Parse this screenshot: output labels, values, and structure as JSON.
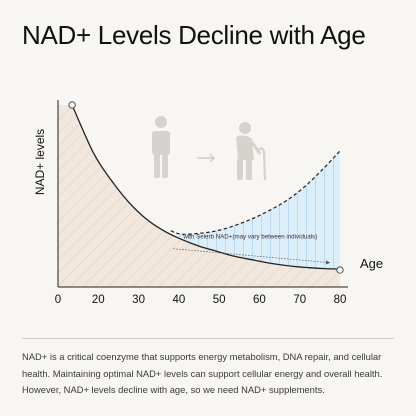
{
  "title": "NAD+ Levels Decline with Age",
  "description": "NAD+ is a critical coenzyme that supports energy metabolism, DNA repair, and cellular health. Maintaining optimal NAD+ levels can support cellular energy and overall health. However, NAD+ levels decline with age, so we need NAD+ supplements.",
  "colors": {
    "decline_fill": "#f1e7dc",
    "decline_hatch": "#d9cabb",
    "supplement_fill": "#dceefb",
    "supplement_lines": "#a9cfee",
    "line": "#222222",
    "icon": "#d6d3ce"
  },
  "icons": [
    "young-person-icon",
    "arrow-right-icon",
    "elderly-person-with-cane-icon"
  ],
  "chart_data": {
    "type": "line",
    "xlabel": "Age",
    "ylabel": "NAD+ levels",
    "xlim": [
      0,
      80
    ],
    "ylim": [
      0,
      100
    ],
    "xticks": [
      "0",
      "20",
      "30",
      "40",
      "50",
      "60",
      "70",
      "80"
    ],
    "grid": false,
    "legend": "none",
    "series": [
      {
        "style": "solid",
        "x": [
          4,
          10,
          15,
          20,
          25,
          30,
          35,
          40,
          45,
          50,
          55,
          60,
          65,
          70,
          75,
          80
        ],
        "y": [
          100,
          72,
          56,
          43,
          33,
          26,
          21,
          17,
          14,
          11,
          9,
          7,
          5.5,
          4.5,
          3.8,
          3.5
        ]
      },
      {
        "style": "dashed",
        "x": [
          32,
          35,
          40,
          45,
          50,
          55,
          60,
          65,
          70,
          75,
          80
        ],
        "y": [
          26,
          24,
          24.5,
          26,
          29,
          33,
          38,
          44,
          52,
          62,
          73
        ]
      }
    ],
    "annotations": [
      {
        "text": "with Selerb NAD+(may vary between individuals)",
        "x": 35,
        "y": 19,
        "arrow_to_x": 77
      }
    ]
  }
}
